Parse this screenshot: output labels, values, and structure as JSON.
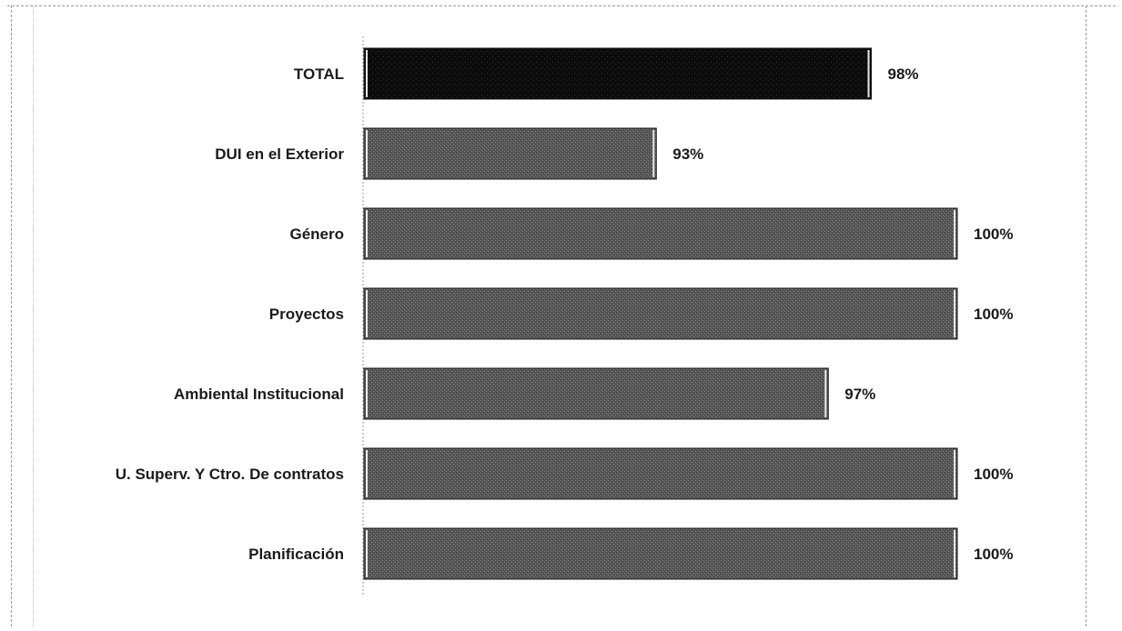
{
  "chart_data": {
    "type": "bar",
    "orientation": "horizontal",
    "title": "",
    "xlabel": "",
    "ylabel": "",
    "xlim": [
      0,
      100
    ],
    "grid": false,
    "legend": "none",
    "categories": [
      "TOTAL",
      "DUI en el Exterior",
      "Género",
      "Proyectos",
      "Ambiental Institucional",
      "U. Superv. Y Ctro. De contratos",
      "Planificación"
    ],
    "values": [
      98,
      93,
      100,
      100,
      97,
      100,
      100
    ],
    "value_labels": [
      "98%",
      "93%",
      "100%",
      "100%",
      "97%",
      "100%",
      "100%"
    ],
    "colors": {
      "highlight": "#0d0d0d",
      "bar": "#5a5a5a",
      "bar_pattern": "#7c7c7c"
    },
    "highlight_index": 0
  }
}
